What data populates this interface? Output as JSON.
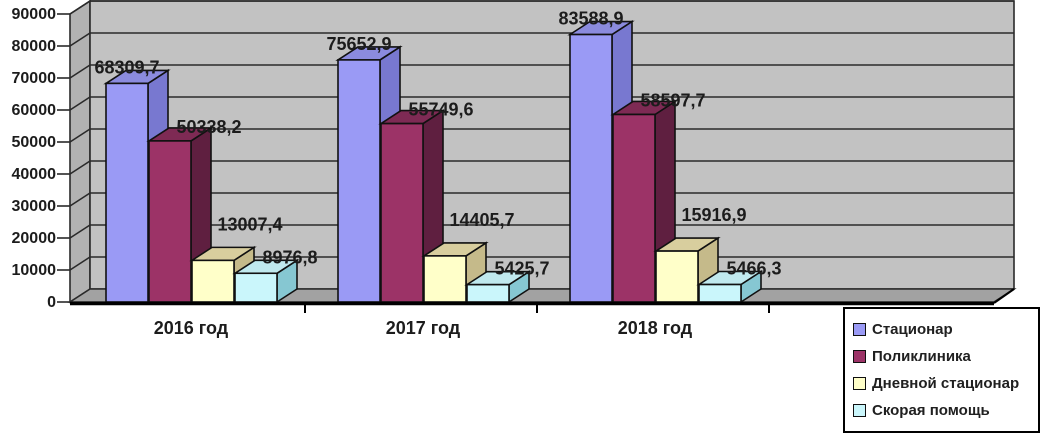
{
  "chart_data": {
    "type": "bar",
    "subtype": "3d-clustered-column",
    "title": "",
    "categories": [
      "2016 год",
      "2017 год",
      "2018 год"
    ],
    "series": [
      {
        "name": "Стационар",
        "color": "#9A9AF5",
        "top_color": "#8B8BDE",
        "side_color": "#7878D0",
        "values": [
          68309.7,
          75652.9,
          83588.9
        ],
        "labels": [
          "68309,7",
          "75652,9",
          "83588,9"
        ]
      },
      {
        "name": "Поликлиника",
        "color": "#9C3367",
        "top_color": "#7E2A54",
        "side_color": "#5F1F40",
        "values": [
          50338.2,
          55749.6,
          58597.7
        ],
        "labels": [
          "50338,2",
          "55749,6",
          "58597,7"
        ]
      },
      {
        "name": "Дневной стационар",
        "color": "#FFFFC9",
        "top_color": "#D8CE9E",
        "side_color": "#C5BA8A",
        "values": [
          13007.4,
          14405.7,
          15916.9
        ],
        "labels": [
          "13007,4",
          "14405,7",
          "15916,9"
        ]
      },
      {
        "name": "Скорая помощь",
        "color": "#CAF6FB",
        "top_color": "#C0E9EE",
        "side_color": "#86C7D2",
        "values": [
          8976.8,
          5425.7,
          5466.3
        ],
        "labels": [
          "8976,8",
          "5425,7",
          "5466,3"
        ]
      }
    ],
    "y_axis": {
      "min": 0,
      "max": 90000,
      "step": 10000,
      "tick_labels": [
        "0",
        "10000",
        "20000",
        "30000",
        "40000",
        "50000",
        "60000",
        "70000",
        "80000",
        "90000"
      ]
    },
    "legend": {
      "position": "bottom-right",
      "entries": [
        "Стационар",
        "Поликлиника",
        "Дневной стационар",
        "Скорая помощь"
      ]
    },
    "grid": true,
    "colors": {
      "back_wall": "#C2C2C2",
      "side_wall": "#B2B2B2",
      "floor": "#A2A2A2",
      "gridline": "#2A2A2A",
      "text": "#1C1C1C",
      "background": "#FFFFFF"
    }
  }
}
